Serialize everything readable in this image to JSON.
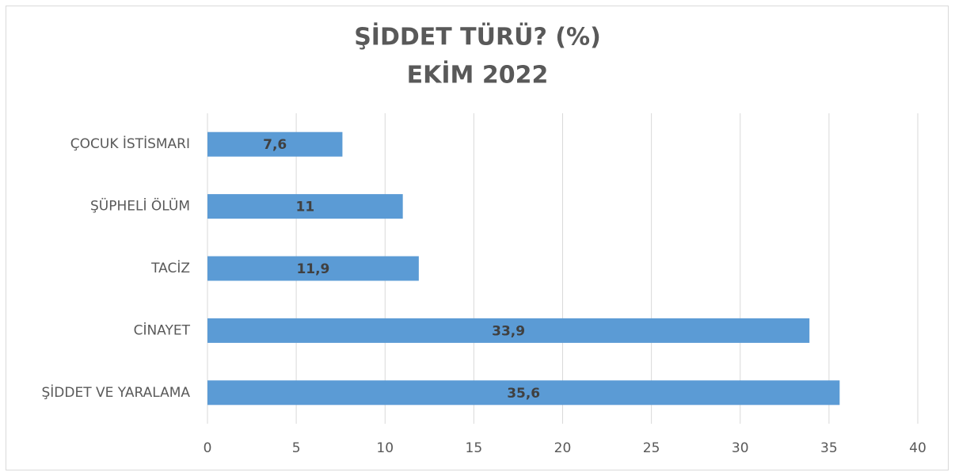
{
  "chart_data": {
    "type": "barh",
    "title": "ŞİDDET TÜRÜ? (%)",
    "subtitle": "EKİM 2022",
    "categories": [
      "ÇOCUK İSTİSMARI",
      "ŞÜPHELİ ÖLÜM",
      "TACİZ",
      "CİNAYET",
      "ŞİDDET VE YARALAMA"
    ],
    "values": [
      7.6,
      11,
      11.9,
      33.9,
      35.6
    ],
    "value_labels": [
      "7,6",
      "11",
      "11,9",
      "33,9",
      "35,6"
    ],
    "color": "#5b9bd5",
    "xlim": [
      0,
      40
    ],
    "xticks": [
      0,
      5,
      10,
      15,
      20,
      25,
      30,
      35,
      40
    ],
    "grid": true
  }
}
